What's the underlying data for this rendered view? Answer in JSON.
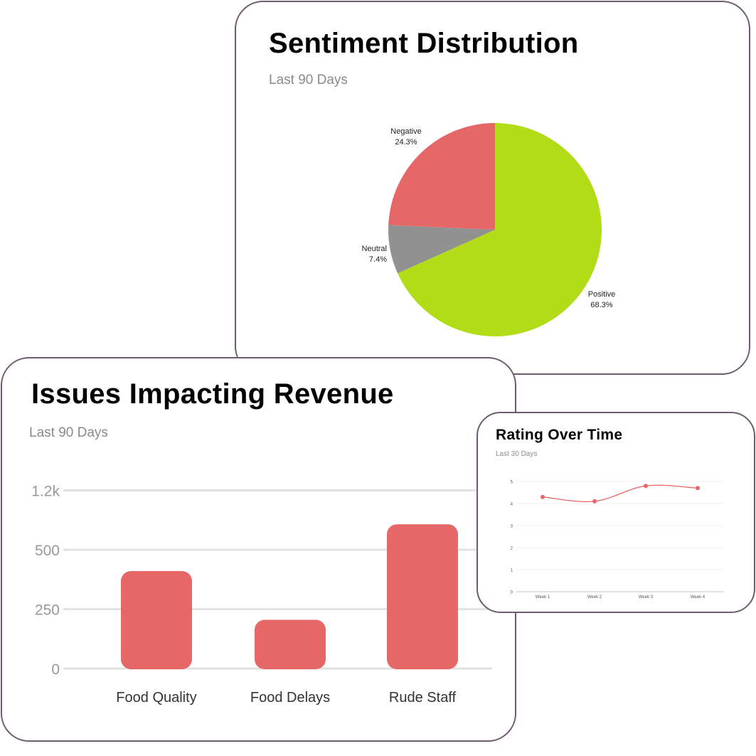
{
  "colors": {
    "positive": "#b3dc18",
    "negative": "#e66767",
    "neutral": "#919191",
    "bar": "#e66767",
    "line": "#e66767",
    "grid": "#e2e2e2",
    "border": "#6e5c70"
  },
  "chart_data": [
    {
      "type": "pie",
      "title": "Sentiment Distribution",
      "subtitle": "Last 90 Days",
      "slices": [
        {
          "label": "Positive",
          "value": 68.3,
          "text": "68.3%"
        },
        {
          "label": "Neutral",
          "value": 7.4,
          "text": "7.4%"
        },
        {
          "label": "Negative",
          "value": 24.3,
          "text": "24.3%"
        }
      ]
    },
    {
      "type": "bar",
      "title": "Issues Impacting Revenue",
      "subtitle": "Last 90 Days",
      "categories": [
        "Food Quality",
        "Food Delays",
        "Rude Staff"
      ],
      "values": [
        410,
        205,
        800
      ],
      "yticks": [
        0,
        250,
        500,
        1200
      ],
      "ytick_labels": [
        "0",
        "250",
        "500",
        "1.2k"
      ],
      "grid": true
    },
    {
      "type": "line",
      "title": "Rating Over Time",
      "subtitle": "Last 30 Days",
      "categories": [
        "Week 1",
        "Week 2",
        "Week 3",
        "Week 4"
      ],
      "values": [
        4.3,
        4.1,
        4.8,
        4.7
      ],
      "ylim": [
        0,
        5
      ],
      "yticks": [
        "0",
        "1",
        "2",
        "3",
        "4",
        "5"
      ],
      "grid": true,
      "smooth": true
    }
  ]
}
